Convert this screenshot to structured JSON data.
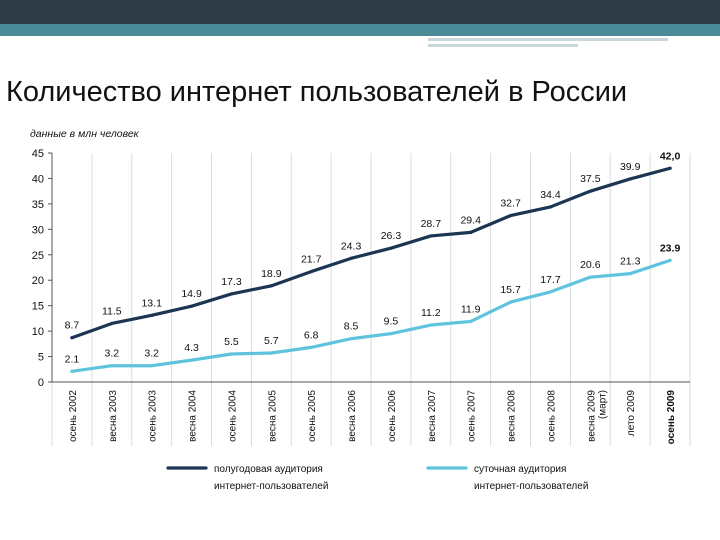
{
  "page": {
    "title": "Количество интернет пользователей в России"
  },
  "chart_data": {
    "type": "line",
    "subtitle": "данные в млн человек",
    "categories": [
      "осень 2002",
      "весна 2003",
      "осень 2003",
      "весна 2004",
      "осень 2004",
      "весна 2005",
      "осень 2005",
      "весна 2006",
      "осень 2006",
      "весна 2007",
      "осень 2007",
      "весна 2008",
      "осень 2008",
      "весна 2009 (март)",
      "лето 2009",
      "осень 2009"
    ],
    "category_lines": [
      [
        "осень 2002"
      ],
      [
        "весна 2003"
      ],
      [
        "осень 2003"
      ],
      [
        "весна 2004"
      ],
      [
        "осень 2004"
      ],
      [
        "весна 2005"
      ],
      [
        "осень 2005"
      ],
      [
        "весна 2006"
      ],
      [
        "осень 2006"
      ],
      [
        "весна 2007"
      ],
      [
        "осень 2007"
      ],
      [
        "весна 2008"
      ],
      [
        "осень 2008"
      ],
      [
        "весна 2009",
        "(март)"
      ],
      [
        "лето 2009"
      ],
      [
        "осень 2009"
      ]
    ],
    "bold_last_category": true,
    "ylim": [
      0,
      45
    ],
    "yticks": [
      0,
      5,
      10,
      15,
      20,
      25,
      30,
      35,
      40,
      45
    ],
    "grid": "vertical",
    "legend_position": "bottom",
    "series": [
      {
        "name": "полугодовая аудитория интернет-пользователей",
        "name_lines": [
          "полугодовая аудитория",
          "интернет-пользователей"
        ],
        "color": "#1b3552",
        "values": [
          8.7,
          11.5,
          13.1,
          14.9,
          17.3,
          18.9,
          21.7,
          24.3,
          26.3,
          28.7,
          29.4,
          32.7,
          34.4,
          37.5,
          39.9,
          42.0
        ],
        "labels": [
          "8.7",
          "11.5",
          "13.1",
          "14.9",
          "17.3",
          "18.9",
          "21.7",
          "24.3",
          "26.3",
          "28.7",
          "29.4",
          "32.7",
          "34.4",
          "37.5",
          "39.9",
          "42,0"
        ]
      },
      {
        "name": "суточная аудитория интернет-пользователей",
        "name_lines": [
          "суточная аудитория",
          "интернет-пользователей"
        ],
        "color": "#5fc3de",
        "values": [
          2.1,
          3.2,
          3.2,
          4.3,
          5.5,
          5.7,
          6.8,
          8.5,
          9.5,
          11.2,
          11.9,
          15.7,
          17.7,
          20.6,
          21.3,
          23.9
        ],
        "labels": [
          "2.1",
          "3.2",
          "3.2",
          "4.3",
          "5.5",
          "5.7",
          "6.8",
          "8.5",
          "9.5",
          "11.2",
          "11.9",
          "15.7",
          "17.7",
          "20.6",
          "21.3",
          "23.9"
        ]
      }
    ]
  }
}
